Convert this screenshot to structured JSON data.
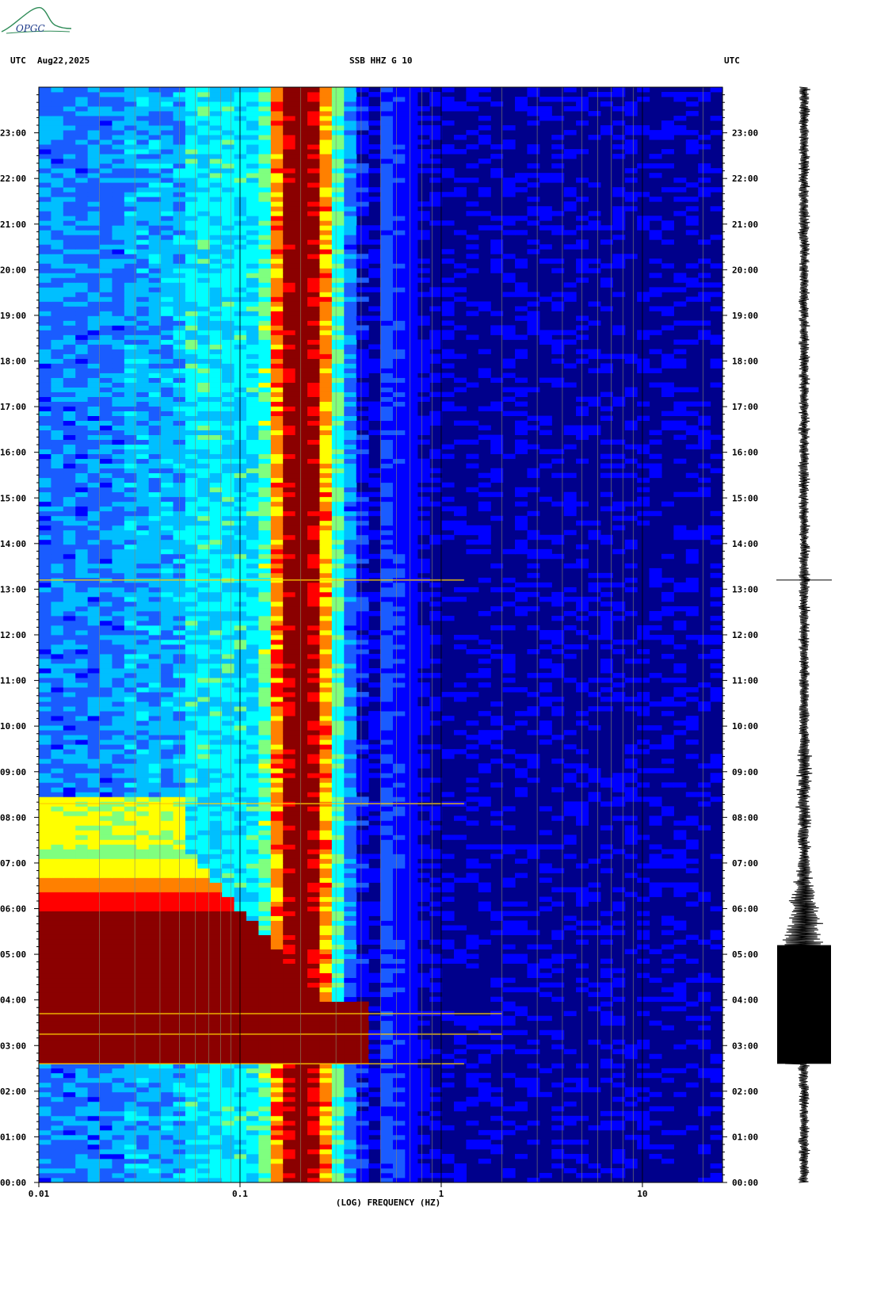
{
  "logo": {
    "text": "OPGC"
  },
  "header": {
    "left_tz": "UTC",
    "date": "Aug22,2025",
    "title": "SSB HHZ G 10",
    "right_tz": "UTC"
  },
  "chart_data": {
    "type": "heatmap",
    "title": "SSB HHZ G 10",
    "xlabel": "(LOG) FREQUENCY (HZ)",
    "x_scale": "log",
    "xlim": [
      0.01,
      25
    ],
    "x_ticks": [
      {
        "value": 0.01,
        "label": "0.01"
      },
      {
        "value": 0.1,
        "label": "0.1"
      },
      {
        "value": 1,
        "label": "1"
      },
      {
        "value": 10,
        "label": "10"
      }
    ],
    "ylabel": "",
    "ylim_hours": [
      0,
      24
    ],
    "y_ticks": [
      "00:00",
      "01:00",
      "02:00",
      "03:00",
      "04:00",
      "05:00",
      "06:00",
      "07:00",
      "08:00",
      "09:00",
      "10:00",
      "11:00",
      "12:00",
      "13:00",
      "14:00",
      "15:00",
      "16:00",
      "17:00",
      "18:00",
      "19:00",
      "20:00",
      "21:00",
      "22:00",
      "23:00"
    ],
    "colormap": [
      "#00008b",
      "#0000ff",
      "#1a5cff",
      "#00bfff",
      "#00ffff",
      "#7fff7f",
      "#ffff00",
      "#ff8000",
      "#ff0000",
      "#8b0000"
    ],
    "events": [
      {
        "time_hours": 2.6,
        "label": ""
      },
      {
        "time_hours": 3.25,
        "label": ""
      },
      {
        "time_hours": 3.7,
        "label": ""
      },
      {
        "time_hours": 8.3,
        "label": ""
      },
      {
        "time_hours": 13.2,
        "label": ""
      }
    ],
    "high_energy_window_hours": [
      2.6,
      7.3
    ],
    "trace": {
      "type": "seismogram",
      "burst_hours": [
        2.6,
        5.2
      ]
    }
  }
}
